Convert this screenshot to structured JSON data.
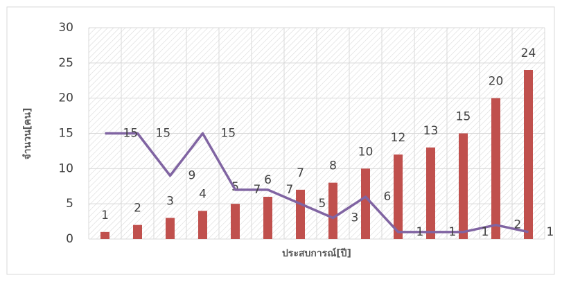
{
  "chart_data": {
    "type": "bar_line",
    "x_label": "ประสบการณ์[ปี]",
    "y_label": "จำนวน[คน]",
    "categories": [
      null,
      null,
      null,
      null,
      null,
      null,
      null,
      null,
      null,
      null,
      null,
      null,
      null,
      null
    ],
    "series": [
      {
        "type": "bar",
        "color": "#c0504d",
        "values": [
          1,
          2,
          3,
          4,
          5,
          6,
          7,
          8,
          10,
          12,
          13,
          15,
          20,
          24
        ]
      },
      {
        "type": "line",
        "color": "#8064a2",
        "values": [
          15,
          15,
          9,
          15,
          7,
          7,
          5,
          3,
          6,
          1,
          1,
          1,
          2,
          1
        ]
      }
    ],
    "ylim": [
      0,
      30
    ],
    "yticks": [
      0,
      5,
      10,
      15,
      20,
      25,
      30
    ],
    "grid": true
  }
}
